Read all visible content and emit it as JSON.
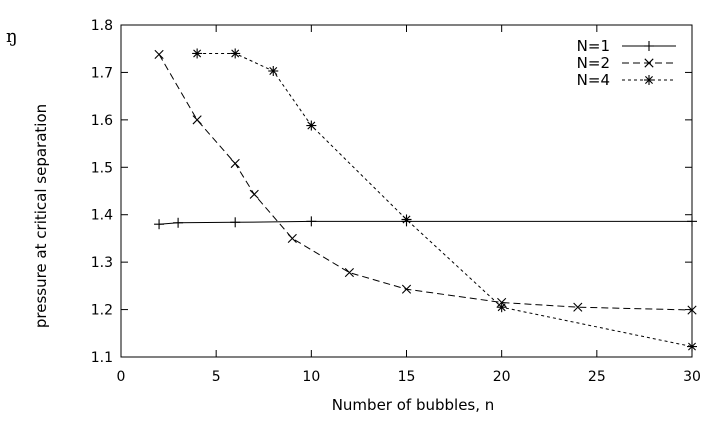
{
  "corner_mark": "ŋ",
  "chart_data": {
    "type": "line",
    "title": "",
    "xlabel": "Number of bubbles, n",
    "ylabel": "pressure at critical separation",
    "xlim": [
      0,
      30
    ],
    "ylim": [
      1.1,
      1.8
    ],
    "x_ticks": [
      0,
      5,
      10,
      15,
      20,
      25,
      30
    ],
    "y_ticks": [
      1.1,
      1.2,
      1.3,
      1.4,
      1.5,
      1.6,
      1.7,
      1.8
    ],
    "x_tick_labels": [
      "0",
      "5",
      "10",
      "15",
      "20",
      "25",
      "30"
    ],
    "y_tick_labels": [
      "1.1",
      "1.2",
      "1.3",
      "1.4",
      "1.5",
      "1.6",
      "1.7",
      "1.8"
    ],
    "grid": false,
    "legend_position": "top-right",
    "series": [
      {
        "name": "N=1",
        "style": "solid",
        "marker": "plus",
        "x": [
          2,
          3,
          6,
          10,
          15,
          30
        ],
        "y": [
          1.38,
          1.383,
          1.384,
          1.386,
          1.386,
          1.386
        ]
      },
      {
        "name": "N=2",
        "style": "dashed",
        "marker": "cross",
        "x": [
          2,
          4,
          6,
          7,
          9,
          12,
          15,
          20,
          24,
          30
        ],
        "y": [
          1.738,
          1.6,
          1.508,
          1.443,
          1.35,
          1.278,
          1.243,
          1.215,
          1.205,
          1.199
        ]
      },
      {
        "name": "N=4",
        "style": "dotted",
        "marker": "star",
        "x": [
          4,
          6,
          8,
          10,
          15,
          20,
          30
        ],
        "y": [
          1.74,
          1.74,
          1.703,
          1.588,
          1.39,
          1.205,
          1.122
        ]
      }
    ]
  }
}
